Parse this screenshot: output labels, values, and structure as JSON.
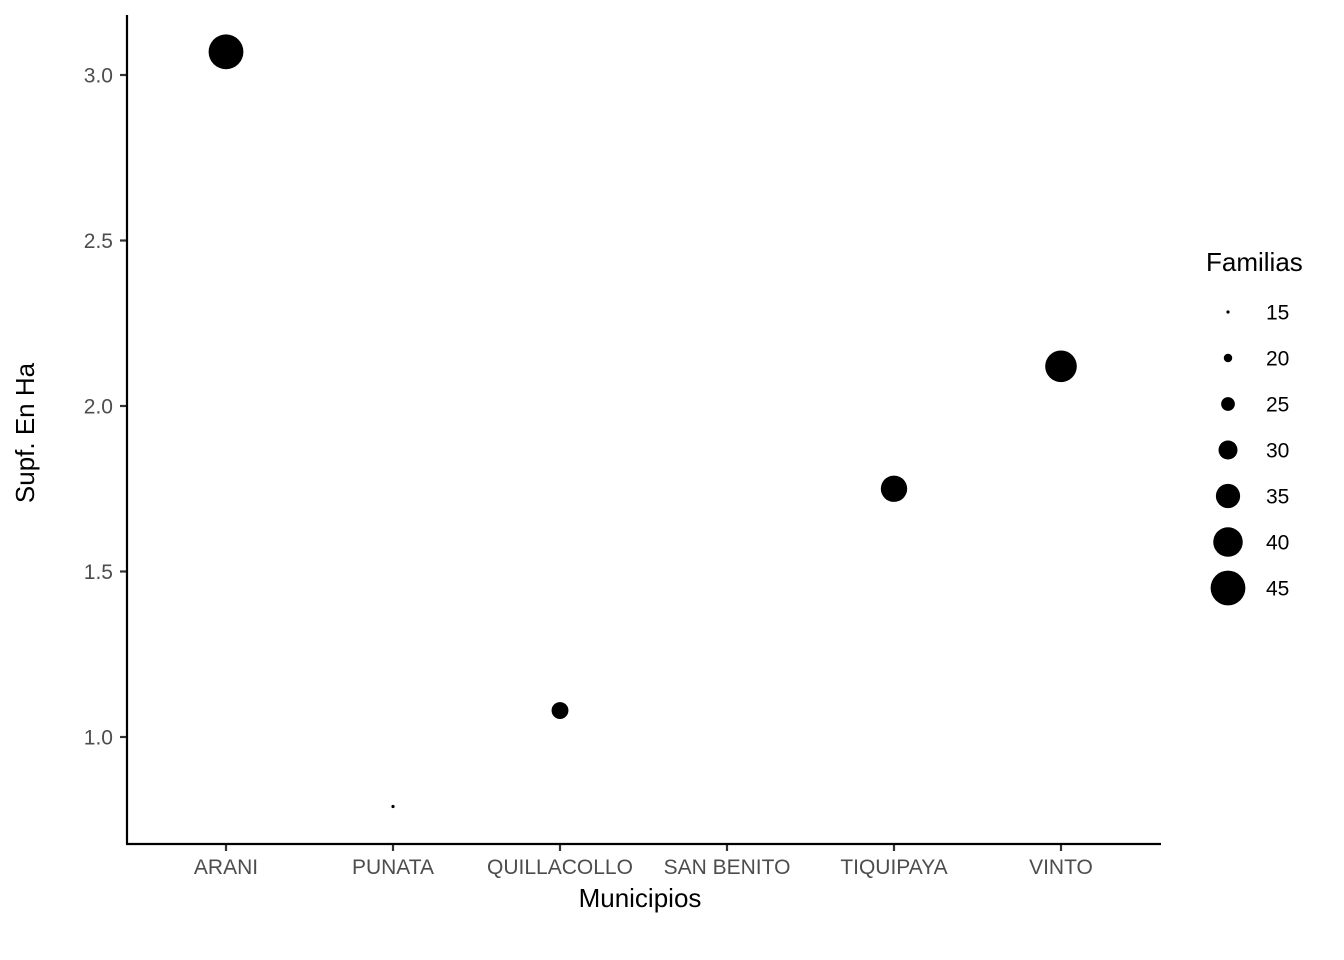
{
  "chart_data": {
    "type": "scatter",
    "title": "",
    "xlabel": "Municipios",
    "ylabel": "Supf. En Ha",
    "categories": [
      "ARANI",
      "PUNATA",
      "QUILLACOLLO",
      "SAN BENITO",
      "TIQUIPAYA",
      "VINTO"
    ],
    "yticks": [
      "1.0",
      "1.5",
      "2.0",
      "2.5",
      "3.0"
    ],
    "ylim": [
      0.68,
      3.18
    ],
    "points": [
      {
        "category": "ARANI",
        "y": 3.07,
        "size": 45
      },
      {
        "category": "PUNATA",
        "y": 0.79,
        "size": 15
      },
      {
        "category": "QUILLACOLLO",
        "y": 1.08,
        "size": 28
      },
      {
        "category": "TIQUIPAYA",
        "y": 1.75,
        "size": 37
      },
      {
        "category": "VINTO",
        "y": 2.12,
        "size": 42
      }
    ],
    "size_legend": {
      "title": "Familias",
      "values": [
        15,
        20,
        25,
        30,
        35,
        40,
        45
      ]
    },
    "legend_position": "right",
    "grid": false,
    "point_color": "#000000"
  }
}
